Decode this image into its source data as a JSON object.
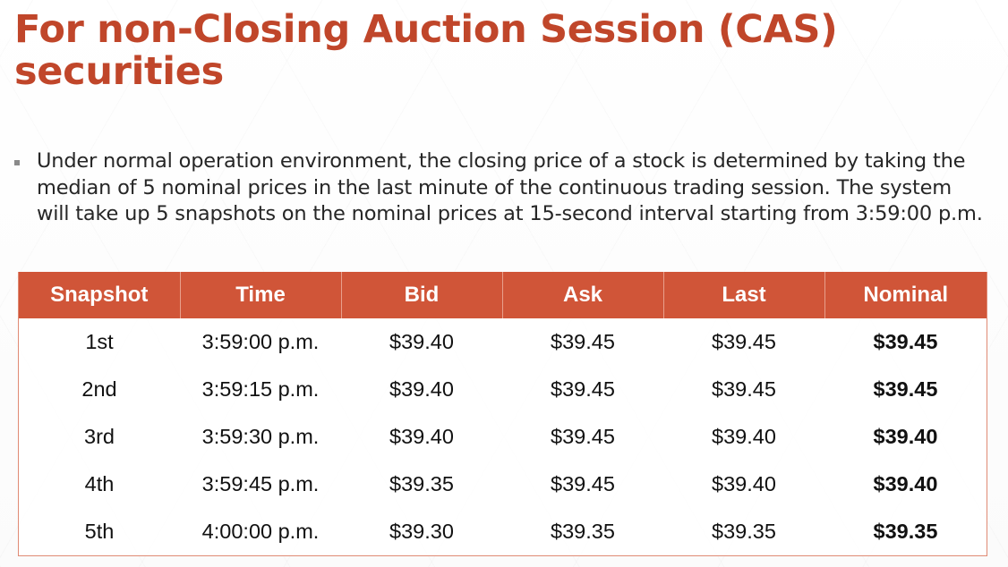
{
  "slide": {
    "title": "For non-Closing Auction Session (CAS) securities",
    "bullet": "Under normal operation environment, the closing price of a stock is determined by taking the median of 5 nominal prices in the last minute of the continuous trading session. The system will take up 5 snapshots on the nominal prices at 15-second interval starting from 3:59:00 p.m."
  },
  "table": {
    "headers": {
      "snapshot": "Snapshot",
      "time": "Time",
      "bid": "Bid",
      "ask": "Ask",
      "last": "Last",
      "nominal": "Nominal"
    },
    "rows": [
      {
        "snapshot": "1st",
        "time": "3:59:00 p.m.",
        "bid": "$39.40",
        "ask": "$39.45",
        "last": "$39.45",
        "nominal": "$39.45"
      },
      {
        "snapshot": "2nd",
        "time": "3:59:15 p.m.",
        "bid": "$39.40",
        "ask": "$39.45",
        "last": "$39.45",
        "nominal": "$39.45"
      },
      {
        "snapshot": "3rd",
        "time": "3:59:30 p.m.",
        "bid": "$39.40",
        "ask": "$39.45",
        "last": "$39.40",
        "nominal": "$39.40"
      },
      {
        "snapshot": "4th",
        "time": "3:59:45 p.m.",
        "bid": "$39.35",
        "ask": "$39.45",
        "last": "$39.40",
        "nominal": "$39.40"
      },
      {
        "snapshot": "5th",
        "time": "4:00:00 p.m.",
        "bid": "$39.30",
        "ask": "$39.35",
        "last": "$39.35",
        "nominal": "$39.35"
      }
    ]
  },
  "colors": {
    "accent": "#c0462a",
    "header_fill": "#d05538",
    "text": "#262626"
  }
}
